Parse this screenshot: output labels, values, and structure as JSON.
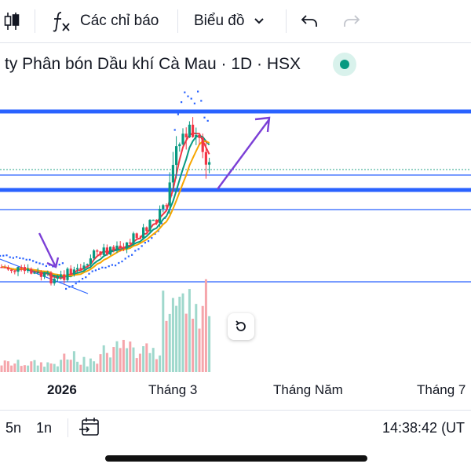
{
  "toolbar": {
    "indicators_label": "Các chỉ báo",
    "chart_type_label": "Biểu đồ"
  },
  "symbol": {
    "title": "ty Phân bón Dầu khí Cà Mau · 1D · HSX",
    "status_color": "#089981"
  },
  "time_axis": {
    "labels": [
      "2026",
      "Tháng 3",
      "Tháng Năm",
      "Tháng 7"
    ]
  },
  "bottom_bar": {
    "ranges": [
      "5n",
      "1n"
    ],
    "clock": "14:38:42 (UT"
  },
  "colors": {
    "up": "#089981",
    "down": "#f23645",
    "level_line": "#2962ff",
    "annotation_arrow": "#7b3fd6"
  },
  "icons": {
    "candles": "candlestick-icon",
    "indicators": "fx-icon",
    "undo": "undo-icon",
    "redo": "redo-icon",
    "date_range": "calendar-range-icon",
    "reset": "reset-chart-icon"
  }
}
